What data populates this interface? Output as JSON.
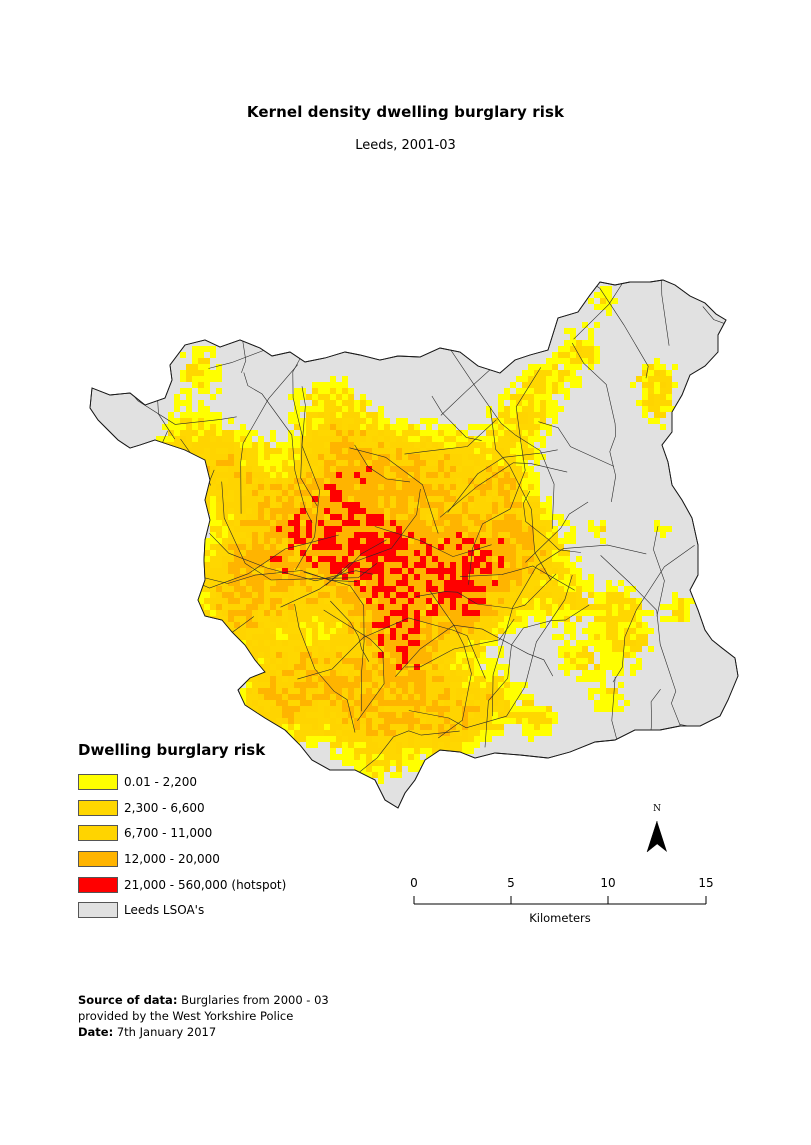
{
  "title": "Kernel density dwelling burglary risk",
  "subtitle": "Leeds, 2001-03",
  "legend": {
    "title": "Dwelling burglary risk",
    "items": [
      {
        "label": "0.01 - 2,200",
        "color": "#ffff00"
      },
      {
        "label": "2,300 - 6,600",
        "color": "#ffd700"
      },
      {
        "label": "6,700 - 11,000",
        "color": "#ffd400"
      },
      {
        "label": "12,000 - 20,000",
        "color": "#ffb400"
      },
      {
        "label": "21,000 - 560,000 (hotspot)",
        "color": "#ff0000"
      },
      {
        "label": "Leeds LSOA's",
        "color": "#e1e1e1"
      }
    ]
  },
  "north_arrow": {
    "label": "N"
  },
  "scale_bar": {
    "ticks": [
      "0",
      "5",
      "10",
      "15"
    ],
    "unit": "Kilometers"
  },
  "footer": {
    "source_label": "Source of data:",
    "source_text": " Burglaries from 2000 - 03",
    "source_line2": "provided by the West Yorkshire Police",
    "date_label": "Date:",
    "date_text": " 7th January 2017"
  }
}
